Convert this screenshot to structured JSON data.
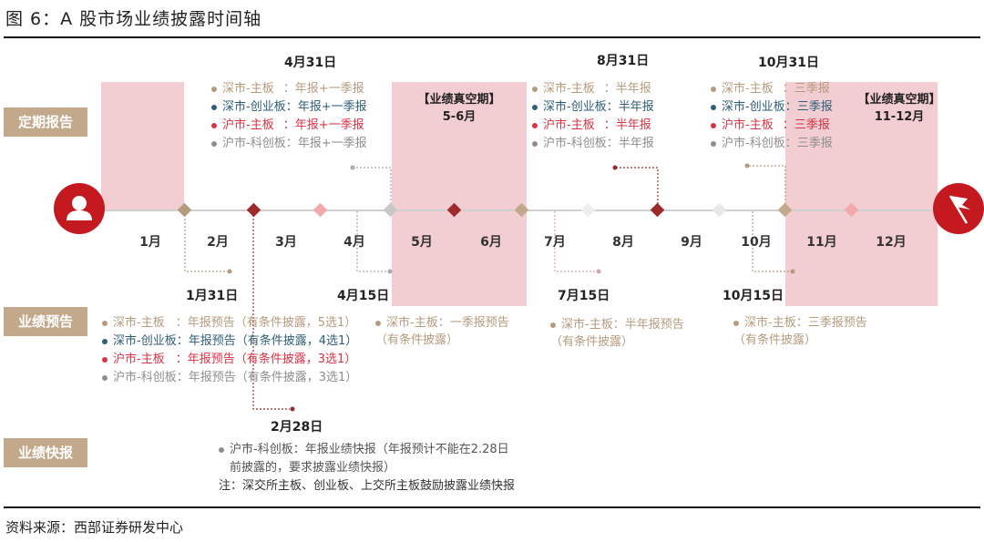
{
  "figure": {
    "title": "图 6：A 股市场业绩披露时间轴",
    "source": "资料来源：西部证券研发中心"
  },
  "categories": {
    "regular": "定期报告",
    "forecast": "业绩预告",
    "express": "业绩快报"
  },
  "months": [
    "1月",
    "2月",
    "3月",
    "4月",
    "5月",
    "6月",
    "7月",
    "8月",
    "9月",
    "10月",
    "11月",
    "12月"
  ],
  "icons": {
    "start": "person-icon",
    "end": "flag-icon"
  },
  "colors": {
    "main": "#b59b7e",
    "chinext": "#2f5f78",
    "sh_main": "#d73344",
    "star": "#8e8e8e",
    "empty_period": "#f2cdd2"
  },
  "empty_periods": [
    {
      "label": "【业绩真空期】",
      "range": "5-6月"
    },
    {
      "label": "【业绩真空期】",
      "range": "11-12月"
    }
  ],
  "regular_reports": [
    {
      "date": "4月31日",
      "items": [
        {
          "board": "深市-主板",
          "sep": "：",
          "report": "年报+一季报"
        },
        {
          "board": "深市-创业板",
          "sep": "：",
          "report": "年报+一季报"
        },
        {
          "board": "沪市-主板",
          "sep": "：",
          "report": "年报+一季报"
        },
        {
          "board": "沪市-科创板",
          "sep": "：",
          "report": "年报+一季报"
        }
      ]
    },
    {
      "date": "8月31日",
      "items": [
        {
          "board": "深市-主板",
          "sep": "：",
          "report": "半年报"
        },
        {
          "board": "深市-创业板",
          "sep": "：",
          "report": "半年报"
        },
        {
          "board": "沪市-主板",
          "sep": "：",
          "report": "半年报"
        },
        {
          "board": "沪市-科创板",
          "sep": "：",
          "report": "半年报"
        }
      ]
    },
    {
      "date": "10月31日",
      "items": [
        {
          "board": "深市-主板",
          "sep": "：",
          "report": "三季报"
        },
        {
          "board": "深市-创业板",
          "sep": "：",
          "report": "三季报"
        },
        {
          "board": "沪市-主板",
          "sep": "：",
          "report": "三季报"
        },
        {
          "board": "沪市-科创板",
          "sep": "：",
          "report": "三季报"
        }
      ]
    }
  ],
  "forecast_dates": {
    "jan31": "1月31日",
    "apr15": "4月15日",
    "jul15": "7月15日",
    "oct15": "10月15日",
    "feb28": "2月28日"
  },
  "forecast_annual": [
    {
      "board": "深市-主板",
      "sep": "：",
      "text": "年报预告（有条件披露，5选1）"
    },
    {
      "board": "深市-创业板",
      "sep": "：",
      "text": "年报预告（有条件披露，4选1）"
    },
    {
      "board": "沪市-主板",
      "sep": "：",
      "text": "年报预告（有条件披露，3选1）"
    },
    {
      "board": "沪市-科创板",
      "sep": "：",
      "text": "年报预告（有条件披露，3选1）"
    }
  ],
  "forecast_q1": {
    "line1": "深市-主板：一季报预告",
    "line2": "（有条件披露）"
  },
  "forecast_h1": {
    "line1": "深市-主板：半年报预告",
    "line2": "（有条件披露）"
  },
  "forecast_q3": {
    "line1": "深市-主板：三季报预告",
    "line2": "（有条件披露）"
  },
  "express": {
    "line1": "沪市-科创板：年报业绩快报（年报预计不能在2.28日",
    "line2": "前披露的，要求披露业绩快报）",
    "note": "注：深交所主板、创业板、上交所主板鼓励披露业绩快报"
  }
}
